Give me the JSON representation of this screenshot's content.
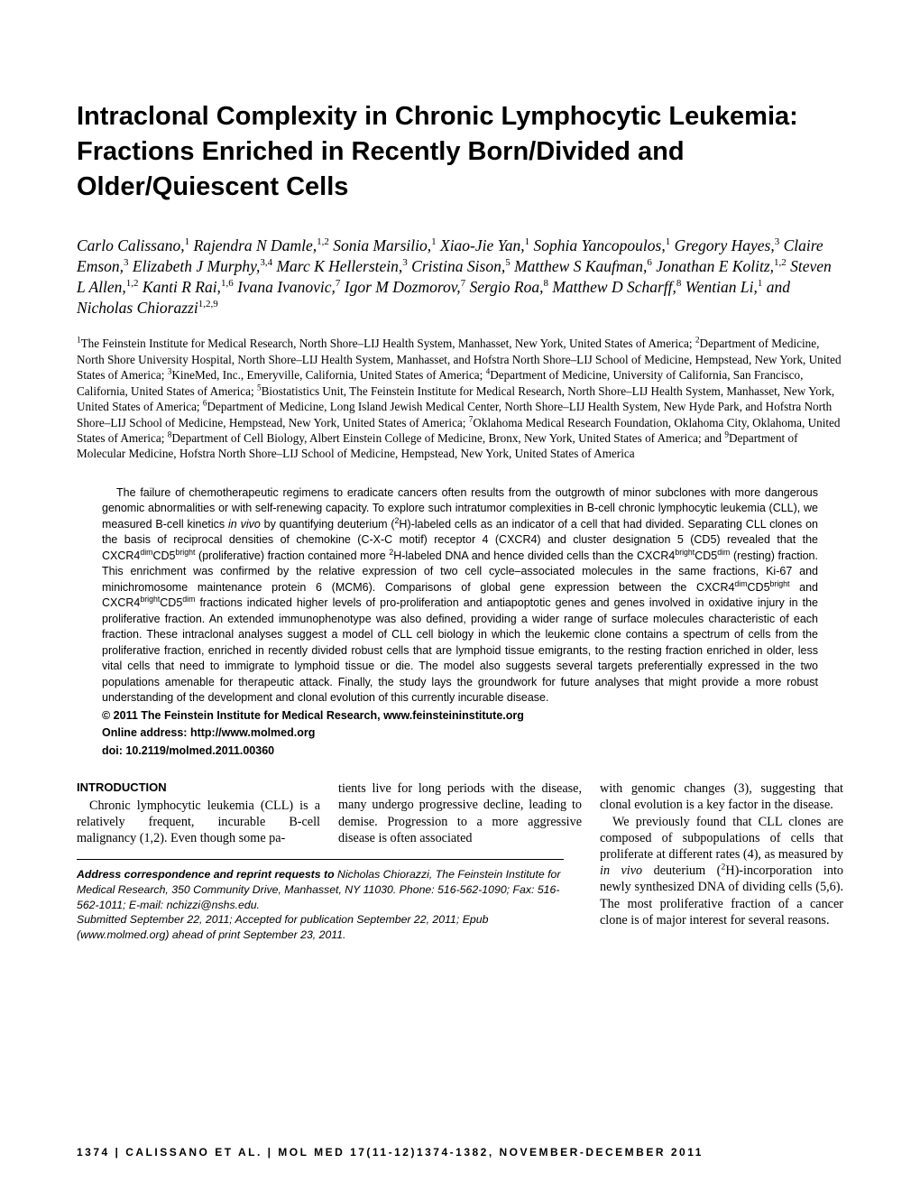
{
  "title": "Intraclonal Complexity in Chronic Lymphocytic Leukemia: Fractions Enriched in Recently Born/Divided and Older/Quiescent Cells",
  "authors_html": "Carlo Calissano,<sup>1</sup> Rajendra N Damle,<sup>1,2</sup> Sonia Marsilio,<sup>1</sup> Xiao-Jie Yan,<sup>1</sup> Sophia Yancopoulos,<sup>1</sup> Gregory Hayes,<sup>3</sup> Claire Emson,<sup>3</sup> Elizabeth J Murphy,<sup>3,4</sup> Marc K Hellerstein,<sup>3</sup> Cristina Sison,<sup>5</sup> Matthew S Kaufman,<sup>6</sup> Jonathan E Kolitz,<sup>1,2</sup> Steven L Allen,<sup>1,2</sup> Kanti R Rai,<sup>1,6</sup> Ivana Ivanovic,<sup>7</sup> Igor M Dozmorov,<sup>7</sup> Sergio Roa,<sup>8</sup> Matthew D Scharff,<sup>8</sup> Wentian Li,<sup>1</sup> and Nicholas Chiorazzi<sup>1,2,9</sup>",
  "affiliations_html": "<sup>1</sup>The Feinstein Institute for Medical Research, North Shore–LIJ Health System, Manhasset, New York, United States of America; <sup>2</sup>Department of Medicine, North Shore University Hospital, North Shore–LIJ Health System, Manhasset, and Hofstra North Shore–LIJ School of Medicine, Hempstead, New York, United States of America; <sup>3</sup>KineMed, Inc., Emeryville, California, United States of America; <sup>4</sup>Department of Medicine, University of California, San Francisco, California, United States of America; <sup>5</sup>Biostatistics Unit, The Feinstein Institute for Medical Research, North Shore–LIJ Health System, Manhasset, New York, United States of America; <sup>6</sup>Department of Medicine, Long Island Jewish Medical Center, North Shore–LIJ Health System, New Hyde Park, and Hofstra North Shore–LIJ School of Medicine, Hempstead, New York, United States of America; <sup>7</sup>Oklahoma Medical Research Foundation, Oklahoma City, Oklahoma, United States of America; <sup>8</sup>Department of Cell Biology, Albert Einstein College of Medicine, Bronx, New York, United States of America; and <sup>9</sup>Department of Molecular Medicine, Hofstra North Shore–LIJ School of Medicine, Hempstead, New York, United States of America",
  "abstract_html": "The failure of chemotherapeutic regimens to eradicate cancers often results from the outgrowth of minor subclones with more dangerous genomic abnormalities or with self-renewing capacity. To explore such intratumor complexities in B-cell chronic lymphocytic leukemia (CLL), we measured B-cell kinetics <i>in vivo</i> by quantifying deuterium (<sup>2</sup>H)-labeled cells as an indicator of a cell that had divided. Separating CLL clones on the basis of reciprocal densities of chemokine (C-X-C motif) receptor 4 (CXCR4) and cluster designation 5 (CD5) revealed that the CXCR4<sup>dim</sup>CD5<sup>bright</sup> (proliferative) fraction contained more <sup>2</sup>H-labeled DNA and hence divided cells than the CXCR4<sup>bright</sup>CD5<sup>dim</sup> (resting) fraction. This enrichment was confirmed by the relative expression of two cell cycle–associated molecules in the same fractions, Ki-67 and minichromosome maintenance protein 6 (MCM6). Comparisons of global gene expression between the CXCR4<sup>dim</sup>CD5<sup>bright</sup> and CXCR4<sup>bright</sup>CD5<sup>dim</sup> fractions indicated higher levels of pro-proliferation and antiapoptotic genes and genes involved in oxidative injury in the proliferative fraction. An extended immunophenotype was also defined, providing a wider range of surface molecules characteristic of each fraction. These intraclonal analyses suggest a model of CLL cell biology in which the leukemic clone contains a spectrum of cells from the proliferative fraction, enriched in recently divided robust cells that are lymphoid tissue emigrants, to the resting fraction enriched in older, less vital cells that need to immigrate to lymphoid tissue or die. The model also suggests several targets preferentially expressed in the two populations amenable for therapeutic attack. Finally, the study lays the groundwork for future analyses that might provide a more robust understanding of the development and clonal evolution of this currently incurable disease.",
  "copyright": "© 2011 The Feinstein Institute for Medical Research, www.feinsteininstitute.org",
  "online_address": "Online address: http://www.molmed.org",
  "doi": "doi: 10.2119/molmed.2011.00360",
  "intro_heading": "INTRODUCTION",
  "col1_text": "Chronic lymphocytic leukemia (CLL) is a relatively frequent, incurable B-cell malignancy (1,2). Even though some pa-",
  "col2_text": "tients live for long periods with the disease, many undergo progressive decline, leading to demise. Progression to a more aggressive disease is often associated",
  "col3_p1": "with genomic changes (3), suggesting that clonal evolution is a key factor in the disease.",
  "col3_p2_html": "We previously found that CLL clones are composed of subpopulations of cells that proliferate at different rates (4), as measured by <i>in vivo</i> deuterium (<sup>2</sup>H)-incorporation into newly synthesized DNA of dividing cells (5,6). The most proliferative fraction of a cancer clone is of major interest for several reasons.",
  "correspondence_lead": "Address correspondence and reprint requests to",
  "correspondence_body": " Nicholas Chiorazzi, The Feinstein Institute for Medical Research, 350 Community Drive, Manhasset, NY 11030. Phone: 516-562-1090; Fax: 516-562-1011; E-mail: nchizzi@nshs.edu.",
  "submitted": "Submitted September 22, 2011; Accepted for publication September 22, 2011; Epub (www.molmed.org) ahead of print September 23, 2011.",
  "footer": "1374 | CALISSANO ET AL. | MOL MED 17(11-12)1374-1382, NOVEMBER-DECEMBER 2011"
}
